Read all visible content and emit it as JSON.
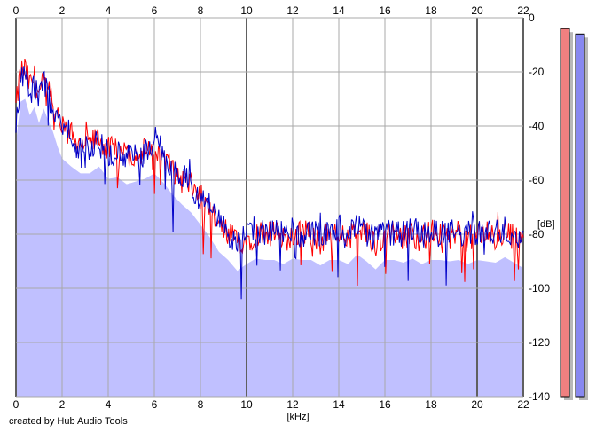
{
  "credit": "created by Hub Audio Tools",
  "colors": {
    "background": "#ffffff",
    "grid": "#a8a8a8",
    "fill": "#c0c0ff",
    "left_channel": "#ff0000",
    "right_channel": "#0000c8",
    "left_meter": "#f08080",
    "right_meter": "#8888f0"
  },
  "chart_data": {
    "type": "line",
    "title": "",
    "xlabel": "[kHz]",
    "ylabel": "[dB]",
    "xlim": [
      0,
      22
    ],
    "ylim": [
      -140,
      0
    ],
    "x_ticks": [
      "0",
      "2",
      "4",
      "6",
      "8",
      "10",
      "12",
      "14",
      "16",
      "18",
      "20",
      "22"
    ],
    "y_ticks": [
      "0",
      "-20",
      "-40",
      "-60",
      "-80",
      "-100",
      "-120",
      "-140"
    ],
    "grid": true,
    "series": [
      {
        "channel": "left",
        "color": "#ff0000",
        "x": [
          0,
          0.2,
          0.4,
          0.6,
          0.8,
          1.0,
          1.2,
          1.4,
          1.6,
          1.8,
          2.0,
          2.4,
          2.8,
          3.2,
          3.6,
          4.0,
          4.4,
          4.8,
          5.2,
          5.6,
          6.0,
          6.4,
          6.8,
          7.2,
          7.6,
          8.0,
          8.4,
          8.8,
          9.2,
          9.6,
          10.0,
          10.4,
          10.8,
          11.2,
          11.6,
          12.0,
          12.4,
          12.8,
          13.2,
          13.6,
          14.0,
          14.4,
          14.8,
          15.2,
          15.6,
          16.0,
          16.4,
          16.8,
          17.2,
          17.6,
          18.0,
          18.4,
          18.8,
          19.2,
          19.6,
          20.0,
          20.4,
          20.8,
          21.2,
          21.6,
          22.0
        ],
        "values": [
          -33,
          -20,
          -19,
          -25,
          -22,
          -28,
          -24,
          -27,
          -31,
          -37,
          -41,
          -44,
          -46,
          -47,
          -44,
          -49,
          -48,
          -51,
          -50,
          -49,
          -50,
          -52,
          -56,
          -60,
          -62,
          -66,
          -72,
          -77,
          -80,
          -83,
          -82,
          -80,
          -79,
          -80,
          -82,
          -80,
          -79,
          -80,
          -83,
          -79,
          -80,
          -82,
          -78,
          -80,
          -84,
          -80,
          -79,
          -81,
          -80,
          -82,
          -79,
          -80,
          -81,
          -79,
          -82,
          -80,
          -80,
          -82,
          -79,
          -81,
          -83
        ]
      },
      {
        "channel": "right",
        "color": "#0000c8",
        "x": [
          0,
          0.2,
          0.4,
          0.6,
          0.8,
          1.0,
          1.2,
          1.4,
          1.6,
          1.8,
          2.0,
          2.4,
          2.8,
          3.2,
          3.6,
          4.0,
          4.4,
          4.8,
          5.2,
          5.6,
          6.0,
          6.4,
          6.8,
          7.2,
          7.6,
          8.0,
          8.4,
          8.8,
          9.2,
          9.6,
          10.0,
          10.4,
          10.8,
          11.2,
          11.6,
          12.0,
          12.4,
          12.8,
          13.2,
          13.6,
          14.0,
          14.4,
          14.8,
          15.2,
          15.6,
          16.0,
          16.4,
          16.8,
          17.2,
          17.6,
          18.0,
          18.4,
          18.8,
          19.2,
          19.6,
          20.0,
          20.4,
          20.8,
          21.2,
          21.6,
          22.0
        ],
        "values": [
          -40,
          -22,
          -21,
          -27,
          -24,
          -30,
          -23,
          -29,
          -33,
          -38,
          -43,
          -46,
          -49,
          -48,
          -46,
          -50,
          -50,
          -52,
          -51,
          -50,
          -45,
          -50,
          -55,
          -58,
          -62,
          -67,
          -70,
          -76,
          -79,
          -84,
          -80,
          -78,
          -80,
          -79,
          -80,
          -78,
          -80,
          -79,
          -80,
          -80,
          -79,
          -80,
          -77,
          -80,
          -82,
          -79,
          -80,
          -80,
          -78,
          -80,
          -80,
          -79,
          -79,
          -80,
          -80,
          -79,
          -80,
          -79,
          -78,
          -80,
          -82
        ]
      }
    ],
    "level_meters": [
      {
        "channel": "left",
        "color": "#f08080",
        "value_db": -4,
        "floor_db": -140
      },
      {
        "channel": "right",
        "color": "#8888f0",
        "value_db": -6,
        "floor_db": -140
      }
    ]
  }
}
